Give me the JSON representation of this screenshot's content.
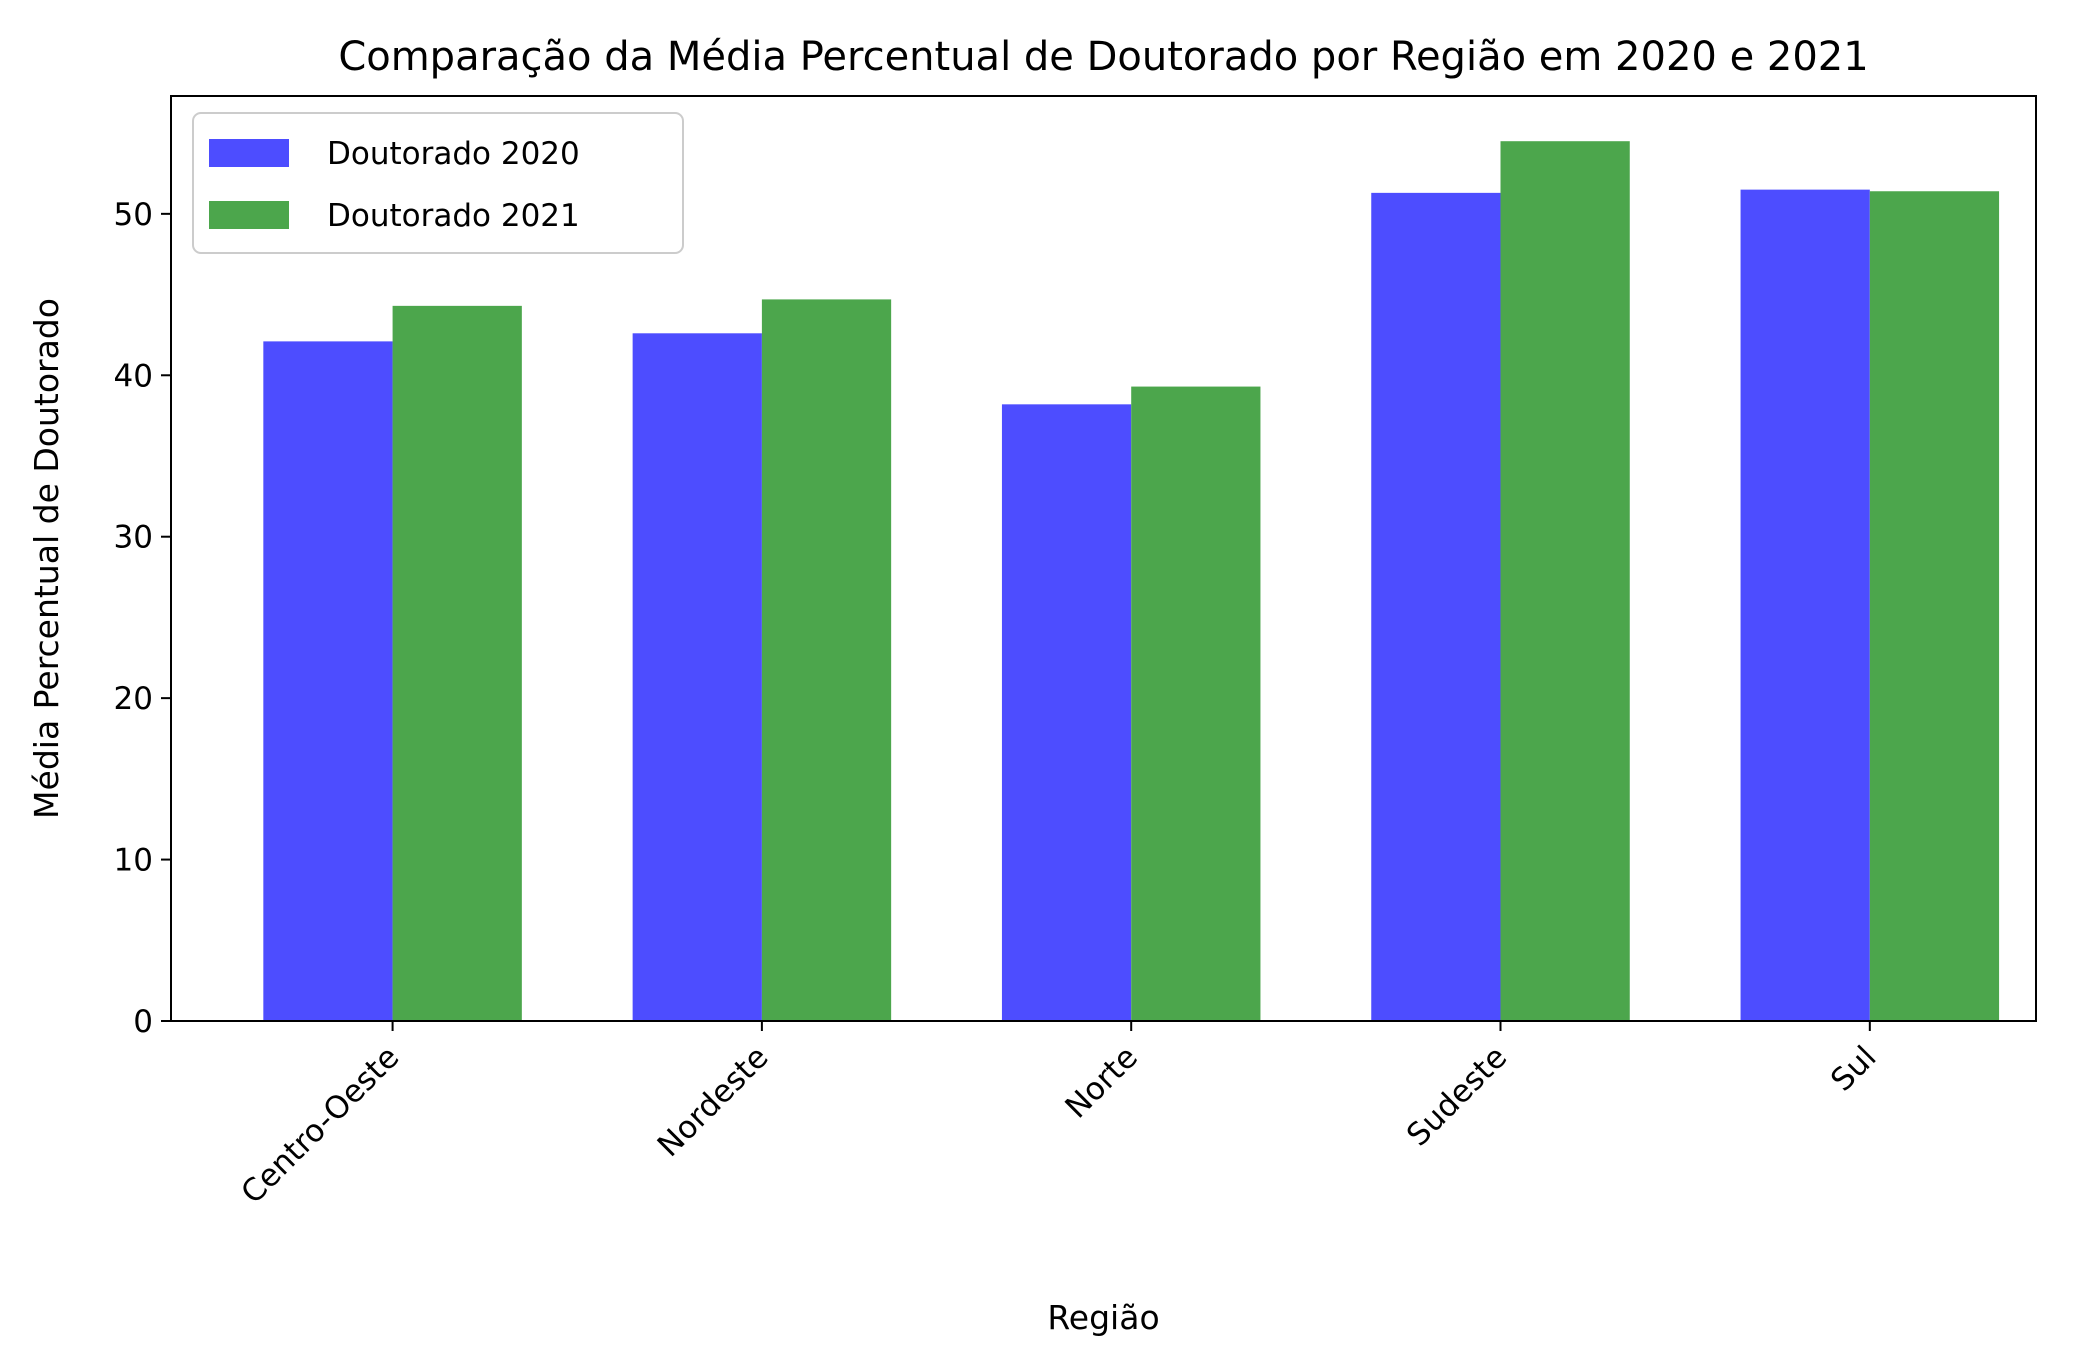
{
  "chart_data": {
    "type": "bar",
    "title": "Comparação da Média Percentual de Doutorado por Região em 2020 e 2021",
    "xlabel": "Região",
    "ylabel": "Média Percentual de Doutorado",
    "categories": [
      "Centro-Oeste",
      "Nordeste",
      "Norte",
      "Sudeste",
      "Sul"
    ],
    "series": [
      {
        "name": "Doutorado 2020",
        "color": "#4d4dff",
        "values": [
          42.1,
          42.6,
          38.2,
          51.3,
          51.5
        ]
      },
      {
        "name": "Doutorado 2021",
        "color": "#4ca64c",
        "values": [
          44.3,
          44.7,
          39.3,
          54.5,
          51.4
        ]
      }
    ],
    "ylim": [
      0,
      57.3
    ],
    "yticks": [
      "0",
      "10",
      "20",
      "30",
      "40",
      "50"
    ],
    "grid": false,
    "legend_position": "top-left"
  }
}
